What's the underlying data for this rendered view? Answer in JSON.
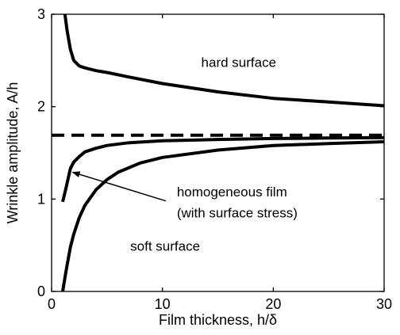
{
  "chart_data": {
    "type": "line",
    "title": "",
    "xlabel": "Film thickness, h/δ",
    "ylabel": "Wrinkle amplitude,  A/h",
    "xlim": [
      0,
      30
    ],
    "ylim": [
      0,
      3
    ],
    "xticks": [
      0,
      10,
      20,
      30
    ],
    "yticks": [
      0,
      1,
      2,
      3
    ],
    "grid": false,
    "series": [
      {
        "name": "hard surface",
        "style": "solid",
        "color": "#000000",
        "x": [
          1.2,
          1.4,
          1.7,
          2.0,
          2.5,
          3.0,
          4.0,
          5.0,
          7.0,
          10.0,
          15.0,
          20.0,
          25.0,
          30.0
        ],
        "y": [
          3.0,
          2.82,
          2.62,
          2.5,
          2.44,
          2.42,
          2.39,
          2.37,
          2.32,
          2.25,
          2.16,
          2.09,
          2.05,
          2.01
        ]
      },
      {
        "name": "",
        "style": "dashed",
        "color": "#000000",
        "x": [
          0,
          30
        ],
        "y": [
          1.69,
          1.69
        ]
      },
      {
        "name": "homogeneous film (with surface stress)",
        "style": "solid",
        "color": "#000000",
        "x": [
          1.0,
          1.3,
          1.7,
          2.0,
          2.5,
          3.0,
          4.0,
          5.0,
          7.0,
          10.0,
          15.0,
          20.0,
          25.0,
          30.0
        ],
        "y": [
          0.97,
          1.12,
          1.33,
          1.4,
          1.46,
          1.51,
          1.55,
          1.58,
          1.61,
          1.63,
          1.645,
          1.655,
          1.66,
          1.665
        ]
      },
      {
        "name": "soft surface",
        "style": "solid",
        "color": "#000000",
        "x": [
          1.0,
          1.3,
          1.7,
          2.0,
          2.5,
          3.0,
          4.0,
          5.0,
          6.0,
          8.0,
          10.0,
          15.0,
          20.0,
          25.0,
          30.0
        ],
        "y": [
          0.0,
          0.22,
          0.48,
          0.62,
          0.8,
          0.93,
          1.1,
          1.21,
          1.29,
          1.39,
          1.45,
          1.53,
          1.58,
          1.6,
          1.62
        ]
      }
    ],
    "annotations": [
      {
        "text": "hard surface",
        "x": 13.5,
        "y": 2.43
      },
      {
        "text": "homogeneous film",
        "x": 11.3,
        "y": 1.03
      },
      {
        "text": "(with surface stress)",
        "x": 11.3,
        "y": 0.8
      },
      {
        "text": "soft surface",
        "x": 7.1,
        "y": 0.44
      }
    ],
    "arrow": {
      "from": [
        10.3,
        0.98
      ],
      "to": [
        1.9,
        1.29
      ]
    }
  }
}
